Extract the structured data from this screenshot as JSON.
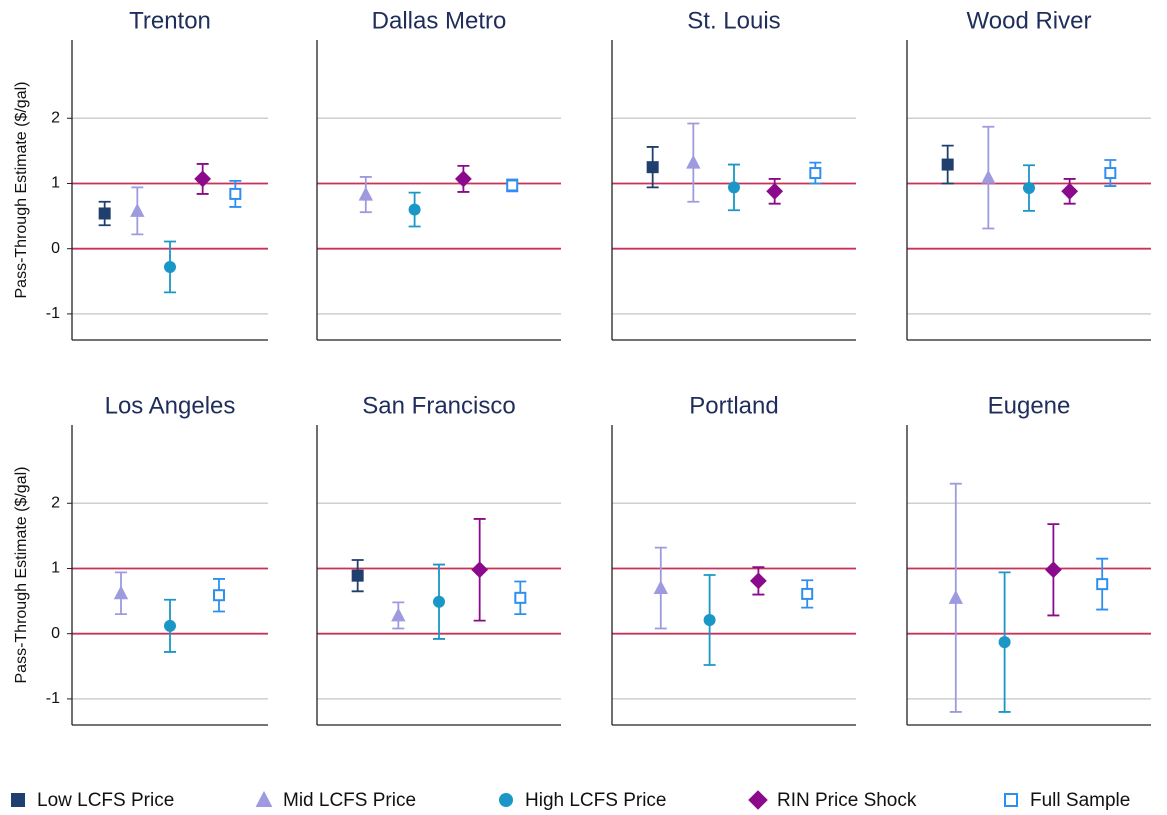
{
  "chart_data": [
    {
      "type": "errorbar",
      "title": "Trenton",
      "ylabel": "Pass-Through Estimate ($/gal)",
      "show_ytick_labels": true,
      "ylim": [
        -1.4,
        3.2
      ],
      "yticks": [
        -1,
        0,
        1,
        2
      ],
      "grid": true,
      "hlines": [
        0,
        1
      ],
      "hline_color": "#c8335a",
      "series": [
        {
          "name": "Low LCFS Price",
          "color": "#1f3f6e",
          "marker": "square",
          "values": [
            0.54
          ],
          "errors": [
            0.18
          ]
        },
        {
          "name": "Mid LCFS Price",
          "color": "#9e9ae0",
          "marker": "triangle",
          "values": [
            0.58
          ],
          "errors": [
            0.36
          ]
        },
        {
          "name": "High LCFS Price",
          "color": "#1a97c6",
          "marker": "circle",
          "values": [
            -0.28
          ],
          "errors": [
            0.39
          ]
        },
        {
          "name": "RIN Price Shock",
          "color": "#8b0a8b",
          "marker": "diamond",
          "values": [
            1.07
          ],
          "errors": [
            0.23
          ]
        },
        {
          "name": "Full Sample",
          "color": "#2e8ff0",
          "marker": "square-open",
          "values": [
            0.84
          ],
          "errors": [
            0.2
          ]
        }
      ]
    },
    {
      "type": "errorbar",
      "title": "Dallas Metro",
      "show_ytick_labels": false,
      "ylim": [
        -1.4,
        3.2
      ],
      "yticks": [
        -1,
        0,
        1,
        2
      ],
      "grid": true,
      "hlines": [
        0,
        1
      ],
      "hline_color": "#c8335a",
      "series": [
        {
          "name": "Low LCFS Price",
          "color": "#1f3f6e",
          "marker": "square",
          "values": [
            null
          ],
          "errors": [
            null
          ]
        },
        {
          "name": "Mid LCFS Price",
          "color": "#9e9ae0",
          "marker": "triangle",
          "values": [
            0.83
          ],
          "errors": [
            0.27
          ]
        },
        {
          "name": "High LCFS Price",
          "color": "#1a97c6",
          "marker": "circle",
          "values": [
            0.6
          ],
          "errors": [
            0.26
          ]
        },
        {
          "name": "RIN Price Shock",
          "color": "#8b0a8b",
          "marker": "diamond",
          "values": [
            1.07
          ],
          "errors": [
            0.2
          ]
        },
        {
          "name": "Full Sample",
          "color": "#2e8ff0",
          "marker": "square-open",
          "values": [
            0.97
          ],
          "errors": [
            0.09
          ]
        }
      ]
    },
    {
      "type": "errorbar",
      "title": "St. Louis",
      "show_ytick_labels": false,
      "ylim": [
        -1.4,
        3.2
      ],
      "yticks": [
        -1,
        0,
        1,
        2
      ],
      "grid": true,
      "hlines": [
        0,
        1
      ],
      "hline_color": "#c8335a",
      "series": [
        {
          "name": "Low LCFS Price",
          "color": "#1f3f6e",
          "marker": "square",
          "values": [
            1.25
          ],
          "errors": [
            0.31
          ]
        },
        {
          "name": "Mid LCFS Price",
          "color": "#9e9ae0",
          "marker": "triangle",
          "values": [
            1.32
          ],
          "errors": [
            0.6
          ]
        },
        {
          "name": "High LCFS Price",
          "color": "#1a97c6",
          "marker": "circle",
          "values": [
            0.94
          ],
          "errors": [
            0.35
          ]
        },
        {
          "name": "RIN Price Shock",
          "color": "#8b0a8b",
          "marker": "diamond",
          "values": [
            0.88
          ],
          "errors": [
            0.19
          ]
        },
        {
          "name": "Full Sample",
          "color": "#2e8ff0",
          "marker": "square-open",
          "values": [
            1.16
          ],
          "errors": [
            0.16
          ]
        }
      ]
    },
    {
      "type": "errorbar",
      "title": "Wood River",
      "show_ytick_labels": false,
      "ylim": [
        -1.4,
        3.2
      ],
      "yticks": [
        -1,
        0,
        1,
        2
      ],
      "grid": true,
      "hlines": [
        0,
        1
      ],
      "hline_color": "#c8335a",
      "series": [
        {
          "name": "Low LCFS Price",
          "color": "#1f3f6e",
          "marker": "square",
          "values": [
            1.29
          ],
          "errors": [
            0.29
          ]
        },
        {
          "name": "Mid LCFS Price",
          "color": "#9e9ae0",
          "marker": "triangle",
          "values": [
            1.09
          ],
          "errors": [
            0.78
          ]
        },
        {
          "name": "High LCFS Price",
          "color": "#1a97c6",
          "marker": "circle",
          "values": [
            0.93
          ],
          "errors": [
            0.35
          ]
        },
        {
          "name": "RIN Price Shock",
          "color": "#8b0a8b",
          "marker": "diamond",
          "values": [
            0.88
          ],
          "errors": [
            0.19
          ]
        },
        {
          "name": "Full Sample",
          "color": "#2e8ff0",
          "marker": "square-open",
          "values": [
            1.16
          ],
          "errors": [
            0.2
          ]
        }
      ]
    },
    {
      "type": "errorbar",
      "title": "Los Angeles",
      "ylabel": "Pass-Through Estimate ($/gal)",
      "show_ytick_labels": true,
      "ylim": [
        -1.4,
        3.2
      ],
      "yticks": [
        -1,
        0,
        1,
        2
      ],
      "grid": true,
      "hlines": [
        0,
        1
      ],
      "hline_color": "#c8335a",
      "series": [
        {
          "name": "Low LCFS Price",
          "color": "#1f3f6e",
          "marker": "square",
          "values": [
            null
          ],
          "errors": [
            null
          ]
        },
        {
          "name": "Mid LCFS Price",
          "color": "#9e9ae0",
          "marker": "triangle",
          "values": [
            0.62
          ],
          "errors": [
            0.32
          ]
        },
        {
          "name": "High LCFS Price",
          "color": "#1a97c6",
          "marker": "circle",
          "values": [
            0.12
          ],
          "errors": [
            0.4
          ]
        },
        {
          "name": "RIN Price Shock",
          "color": "#8b0a8b",
          "marker": "diamond",
          "values": [
            null
          ],
          "errors": [
            null
          ]
        },
        {
          "name": "Full Sample",
          "color": "#2e8ff0",
          "marker": "square-open",
          "values": [
            0.59
          ],
          "errors": [
            0.25
          ]
        }
      ]
    },
    {
      "type": "errorbar",
      "title": "San Francisco",
      "show_ytick_labels": false,
      "ylim": [
        -1.4,
        3.2
      ],
      "yticks": [
        -1,
        0,
        1,
        2
      ],
      "grid": true,
      "hlines": [
        0,
        1
      ],
      "hline_color": "#c8335a",
      "series": [
        {
          "name": "Low LCFS Price",
          "color": "#1f3f6e",
          "marker": "square",
          "values": [
            0.89
          ],
          "errors": [
            0.24
          ]
        },
        {
          "name": "Mid LCFS Price",
          "color": "#9e9ae0",
          "marker": "triangle",
          "values": [
            0.28
          ],
          "errors": [
            0.2
          ]
        },
        {
          "name": "High LCFS Price",
          "color": "#1a97c6",
          "marker": "circle",
          "values": [
            0.49
          ],
          "errors": [
            0.57
          ]
        },
        {
          "name": "RIN Price Shock",
          "color": "#8b0a8b",
          "marker": "diamond",
          "values": [
            0.98
          ],
          "errors": [
            0.78
          ]
        },
        {
          "name": "Full Sample",
          "color": "#2e8ff0",
          "marker": "square-open",
          "values": [
            0.55
          ],
          "errors": [
            0.25
          ]
        }
      ]
    },
    {
      "type": "errorbar",
      "title": "Portland",
      "show_ytick_labels": false,
      "ylim": [
        -1.4,
        3.2
      ],
      "yticks": [
        -1,
        0,
        1,
        2
      ],
      "grid": true,
      "hlines": [
        0,
        1
      ],
      "hline_color": "#c8335a",
      "series": [
        {
          "name": "Low LCFS Price",
          "color": "#1f3f6e",
          "marker": "square",
          "values": [
            null
          ],
          "errors": [
            null
          ]
        },
        {
          "name": "Mid LCFS Price",
          "color": "#9e9ae0",
          "marker": "triangle",
          "values": [
            0.7
          ],
          "errors": [
            0.62
          ]
        },
        {
          "name": "High LCFS Price",
          "color": "#1a97c6",
          "marker": "circle",
          "values": [
            0.21
          ],
          "errors": [
            0.69
          ]
        },
        {
          "name": "RIN Price Shock",
          "color": "#8b0a8b",
          "marker": "diamond",
          "values": [
            0.81
          ],
          "errors": [
            0.21
          ]
        },
        {
          "name": "Full Sample",
          "color": "#2e8ff0",
          "marker": "square-open",
          "values": [
            0.61
          ],
          "errors": [
            0.21
          ]
        }
      ]
    },
    {
      "type": "errorbar",
      "title": "Eugene",
      "show_ytick_labels": false,
      "ylim": [
        -1.4,
        3.2
      ],
      "yticks": [
        -1,
        0,
        1,
        2
      ],
      "grid": true,
      "hlines": [
        0,
        1
      ],
      "hline_color": "#c8335a",
      "series": [
        {
          "name": "Low LCFS Price",
          "color": "#1f3f6e",
          "marker": "square",
          "values": [
            null
          ],
          "errors": [
            null
          ]
        },
        {
          "name": "Mid LCFS Price",
          "color": "#9e9ae0",
          "marker": "triangle",
          "values": [
            0.55
          ],
          "errors": [
            1.75
          ]
        },
        {
          "name": "High LCFS Price",
          "color": "#1a97c6",
          "marker": "circle",
          "values": [
            -0.13
          ],
          "errors": [
            1.07
          ]
        },
        {
          "name": "RIN Price Shock",
          "color": "#8b0a8b",
          "marker": "diamond",
          "values": [
            0.98
          ],
          "errors": [
            0.7
          ]
        },
        {
          "name": "Full Sample",
          "color": "#2e8ff0",
          "marker": "square-open",
          "values": [
            0.76
          ],
          "errors": [
            0.39
          ]
        }
      ]
    }
  ]
}
